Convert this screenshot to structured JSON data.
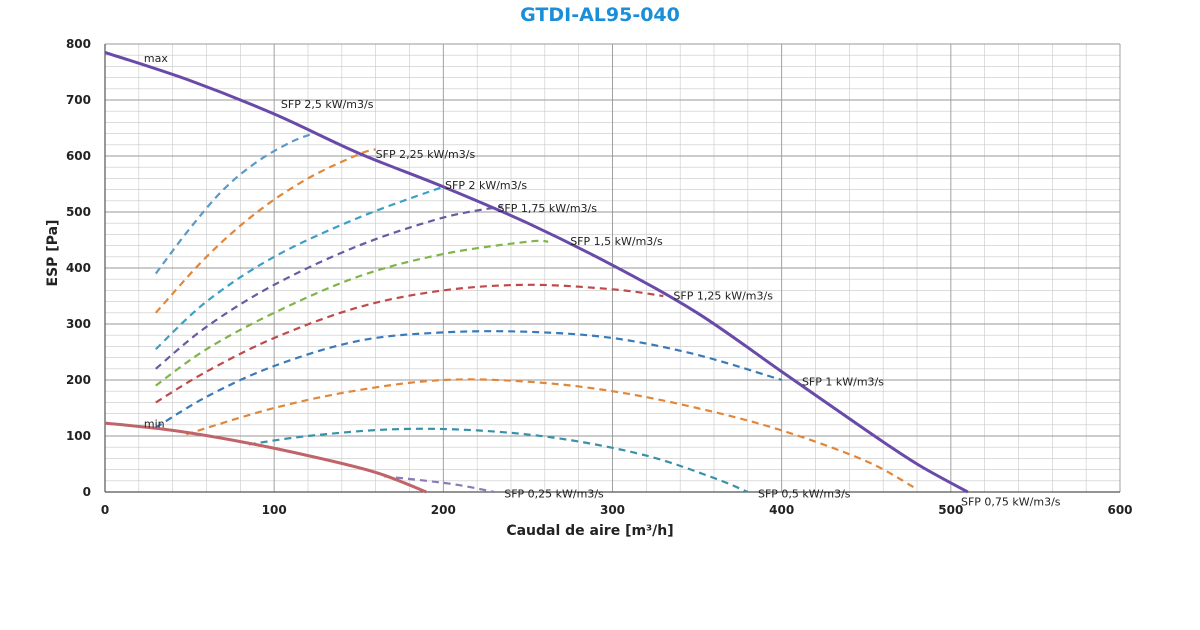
{
  "chart_data": {
    "type": "line",
    "title": "GTDI-AL95-040",
    "xlabel": "Caudal de aire [m³/h]",
    "ylabel": "ESP [Pa]",
    "xlim": [
      0,
      600
    ],
    "ylim": [
      0,
      800
    ],
    "x_ticks": [
      0,
      100,
      200,
      300,
      400,
      500,
      600
    ],
    "y_ticks": [
      0,
      100,
      200,
      300,
      400,
      500,
      600,
      700,
      800
    ],
    "grid": true,
    "colors": {
      "max": "#6a4aa8",
      "min": "#c0646a",
      "title": "#1a8fd8"
    },
    "series": [
      {
        "name": "max",
        "style": "solid",
        "color": "#6a4aa8",
        "points": [
          [
            0,
            785
          ],
          [
            50,
            735
          ],
          [
            100,
            675
          ],
          [
            150,
            605
          ],
          [
            200,
            545
          ],
          [
            250,
            480
          ],
          [
            300,
            405
          ],
          [
            350,
            320
          ],
          [
            400,
            215
          ],
          [
            450,
            110
          ],
          [
            480,
            50
          ],
          [
            510,
            0
          ]
        ]
      },
      {
        "name": "min",
        "style": "solid",
        "color": "#c0646a",
        "points": [
          [
            0,
            123
          ],
          [
            40,
            110
          ],
          [
            80,
            90
          ],
          [
            120,
            65
          ],
          [
            160,
            35
          ],
          [
            190,
            0
          ]
        ]
      },
      {
        "name": "SFP 2,5 kW/m3/s",
        "style": "dashed",
        "color": "#5a9ac8",
        "points": [
          [
            30,
            390
          ],
          [
            50,
            470
          ],
          [
            70,
            540
          ],
          [
            90,
            590
          ],
          [
            110,
            625
          ],
          [
            123,
            640
          ]
        ]
      },
      {
        "name": "SFP 2,25 kW/m3/s",
        "style": "dashed",
        "color": "#e0873a",
        "points": [
          [
            30,
            320
          ],
          [
            60,
            420
          ],
          [
            90,
            500
          ],
          [
            120,
            560
          ],
          [
            150,
            603
          ],
          [
            160,
            612
          ]
        ]
      },
      {
        "name": "SFP 2 kW/m3/s",
        "style": "dashed",
        "color": "#3aa0c8",
        "points": [
          [
            30,
            255
          ],
          [
            60,
            340
          ],
          [
            100,
            420
          ],
          [
            150,
            490
          ],
          [
            200,
            545
          ]
        ]
      },
      {
        "name": "SFP 1,75 kW/m3/s",
        "style": "dashed",
        "color": "#6a5aa0",
        "points": [
          [
            30,
            220
          ],
          [
            60,
            295
          ],
          [
            100,
            370
          ],
          [
            150,
            440
          ],
          [
            200,
            490
          ],
          [
            235,
            510
          ]
        ]
      },
      {
        "name": "SFP 1,5 kW/m3/s",
        "style": "dashed",
        "color": "#7fb54a",
        "points": [
          [
            30,
            190
          ],
          [
            60,
            255
          ],
          [
            100,
            320
          ],
          [
            150,
            385
          ],
          [
            200,
            425
          ],
          [
            250,
            447
          ],
          [
            262,
            447
          ]
        ]
      },
      {
        "name": "SFP 1,25 kW/m3/s",
        "style": "dashed",
        "color": "#c04a4a",
        "points": [
          [
            30,
            160
          ],
          [
            60,
            215
          ],
          [
            100,
            275
          ],
          [
            150,
            330
          ],
          [
            200,
            360
          ],
          [
            250,
            370
          ],
          [
            300,
            362
          ],
          [
            330,
            350
          ]
        ]
      },
      {
        "name": "SFP 1 kW/m3/s",
        "style": "dashed",
        "color": "#3a7ab8",
        "points": [
          [
            30,
            115
          ],
          [
            60,
            170
          ],
          [
            100,
            225
          ],
          [
            150,
            270
          ],
          [
            200,
            285
          ],
          [
            250,
            286
          ],
          [
            300,
            275
          ],
          [
            350,
            245
          ],
          [
            400,
            200
          ]
        ]
      },
      {
        "name": "SFP 0,75 kW/m3/s",
        "style": "dashed",
        "color": "#e0873a",
        "points": [
          [
            48,
            103
          ],
          [
            100,
            150
          ],
          [
            150,
            182
          ],
          [
            200,
            200
          ],
          [
            250,
            197
          ],
          [
            300,
            180
          ],
          [
            350,
            150
          ],
          [
            400,
            110
          ],
          [
            450,
            55
          ],
          [
            480,
            5
          ]
        ]
      },
      {
        "name": "SFP 0,5 kW/m3/s",
        "style": "dashed",
        "color": "#3a90a8",
        "points": [
          [
            85,
            85
          ],
          [
            120,
            100
          ],
          [
            170,
            112
          ],
          [
            220,
            110
          ],
          [
            270,
            95
          ],
          [
            320,
            65
          ],
          [
            360,
            25
          ],
          [
            380,
            0
          ]
        ]
      },
      {
        "name": "SFP 0,25 kW/m3/s",
        "style": "dashed",
        "color": "#8a7ab8",
        "points": [
          [
            165,
            28
          ],
          [
            190,
            20
          ],
          [
            210,
            12
          ],
          [
            230,
            0
          ]
        ]
      }
    ],
    "annotations": [
      {
        "text": "max",
        "x": 23,
        "y": 775,
        "anchor": "start"
      },
      {
        "text": "min",
        "x": 23,
        "y": 122,
        "anchor": "start"
      },
      {
        "text": "SFP 2,5 kW/m3/s",
        "x": 104,
        "y": 693,
        "anchor": "start"
      },
      {
        "text": "SFP 2,25 kW/m3/s",
        "x": 160,
        "y": 604,
        "anchor": "start"
      },
      {
        "text": "SFP 2 kW/m3/s",
        "x": 201,
        "y": 548,
        "anchor": "start"
      },
      {
        "text": "SFP 1,75 kW/m3/s",
        "x": 232,
        "y": 507,
        "anchor": "start"
      },
      {
        "text": "SFP 1,5 kW/m3/s",
        "x": 275,
        "y": 448,
        "anchor": "start"
      },
      {
        "text": "SFP 1,25 kW/m3/s",
        "x": 336,
        "y": 351,
        "anchor": "start"
      },
      {
        "text": "SFP 1 kW/m3/s",
        "x": 412,
        "y": 197,
        "anchor": "start"
      },
      {
        "text": "SFP 0,75 kW/m3/s",
        "x": 506,
        "y": -17,
        "anchor": "start"
      },
      {
        "text": "SFP 0,5 kW/m3/s",
        "x": 386,
        "y": -3,
        "anchor": "start"
      },
      {
        "text": "SFP 0,25 kW/m3/s",
        "x": 236,
        "y": -3,
        "anchor": "start"
      }
    ]
  }
}
